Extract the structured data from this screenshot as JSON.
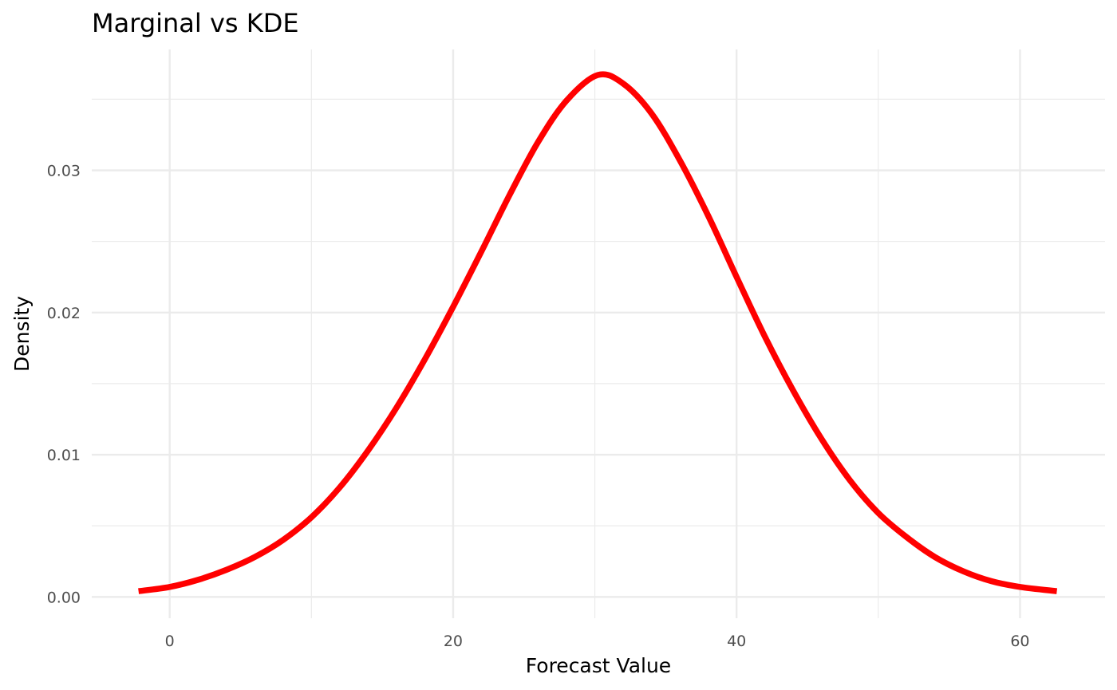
{
  "chart_data": {
    "type": "line",
    "title": "Marginal vs KDE",
    "xlabel": "Forecast Value",
    "ylabel": "Density",
    "xlim": [
      -5.5,
      66
    ],
    "ylim": [
      -0.0015,
      0.0385
    ],
    "x_ticks": [
      0,
      20,
      40,
      60
    ],
    "x_tick_labels": [
      "0",
      "20",
      "40",
      "60"
    ],
    "y_ticks": [
      0.0,
      0.01,
      0.02,
      0.03
    ],
    "y_tick_labels": [
      "0.00",
      "0.01",
      "0.02",
      "0.03"
    ],
    "grid": true,
    "legend": "none",
    "series": [
      {
        "color": "#ff0000",
        "x": [
          -2.2,
          0,
          2,
          4,
          6,
          8,
          10,
          12,
          14,
          16,
          18,
          20,
          22,
          24,
          26,
          28,
          30.2,
          32,
          34,
          36,
          38,
          40,
          42,
          44,
          46,
          48,
          50,
          52,
          54,
          56,
          58,
          60,
          62.6
        ],
        "y": [
          0.0004,
          0.0007,
          0.0012,
          0.0019,
          0.0028,
          0.004,
          0.0056,
          0.0077,
          0.0103,
          0.0133,
          0.0167,
          0.0204,
          0.0243,
          0.0283,
          0.032,
          0.0349,
          0.0367,
          0.0361,
          0.034,
          0.0307,
          0.0268,
          0.0225,
          0.0183,
          0.0145,
          0.0111,
          0.0082,
          0.0059,
          0.0042,
          0.0028,
          0.0018,
          0.0011,
          0.0007,
          0.0004
        ]
      }
    ]
  }
}
